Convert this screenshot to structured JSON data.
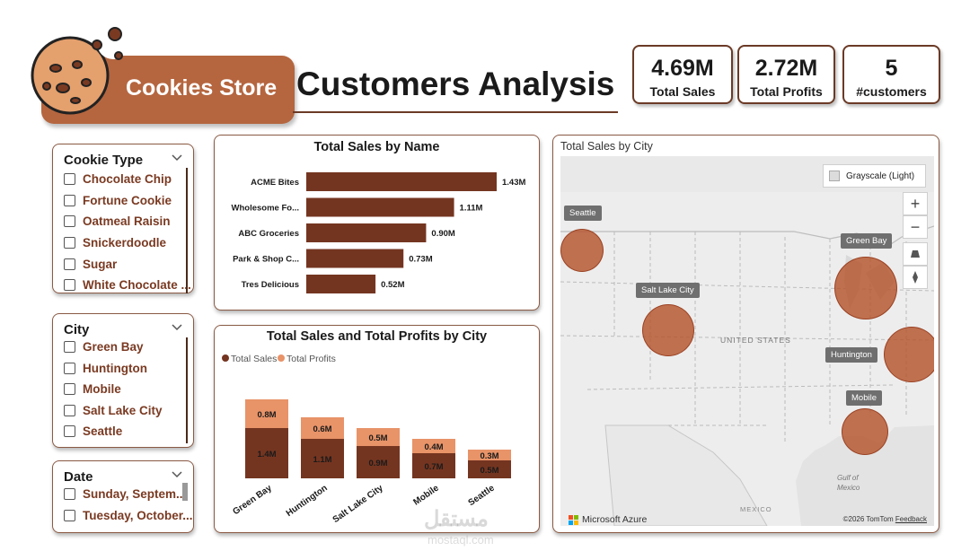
{
  "header": {
    "brand": "Cookies Store",
    "title": "Customers Analysis"
  },
  "kpis": [
    {
      "value": "4.69M",
      "label": "Total Sales"
    },
    {
      "value": "2.72M",
      "label": "Total Profits"
    },
    {
      "value": "5",
      "label": "#customers"
    }
  ],
  "slicers": {
    "cookie_type": {
      "title": "Cookie Type",
      "items": [
        "Chocolate Chip",
        "Fortune Cookie",
        "Oatmeal Raisin",
        "Snickerdoodle",
        "Sugar",
        "White Chocolate ..."
      ]
    },
    "city": {
      "title": "City",
      "items": [
        "Green Bay",
        "Huntington",
        "Mobile",
        "Salt Lake City",
        "Seattle"
      ]
    },
    "date": {
      "title": "Date",
      "items": [
        "Sunday, Septem...",
        "Tuesday, October..."
      ]
    }
  },
  "chart_data": [
    {
      "type": "bar",
      "orientation": "horizontal",
      "title": "Total Sales by Name",
      "categories": [
        "ACME Bites",
        "Wholesome Fo...",
        "ABC Groceries",
        "Park & Shop C...",
        "Tres Delicious"
      ],
      "values": [
        1.43,
        1.11,
        0.9,
        0.73,
        0.52
      ],
      "labels": [
        "1.43M",
        "1.11M",
        "0.90M",
        "0.73M",
        "0.52M"
      ],
      "unit": "M",
      "color": "#743520"
    },
    {
      "type": "bar",
      "stacked": true,
      "title": "Total Sales and Total Profits by City",
      "categories": [
        "Green Bay",
        "Huntington",
        "Salt Lake City",
        "Mobile",
        "Seattle"
      ],
      "series": [
        {
          "name": "Total Sales",
          "values": [
            1.4,
            1.1,
            0.9,
            0.7,
            0.5
          ],
          "labels": [
            "1.4M",
            "1.1M",
            "0.9M",
            "0.7M",
            "0.5M"
          ],
          "color": "#743520"
        },
        {
          "name": "Total Profits",
          "values": [
            0.8,
            0.6,
            0.5,
            0.4,
            0.3
          ],
          "labels": [
            "0.8M",
            "0.6M",
            "0.5M",
            "0.4M",
            "0.3M"
          ],
          "color": "#e89368"
        }
      ],
      "legend": "top-left"
    }
  ],
  "map": {
    "title": "Total Sales by City",
    "style_label": "Grayscale (Light)",
    "country_label": "UNITED STATES",
    "gulf_label": "Gulf of\nMexico",
    "mexico_label": "MEXICO",
    "provider": "Microsoft Azure",
    "attribution": "©2026 TomTom",
    "feedback": "Feedback",
    "zoom_in": "+",
    "zoom_out": "−",
    "cities": [
      "Seattle",
      "Salt Lake City",
      "Green Bay",
      "Huntington",
      "Mobile"
    ],
    "bubble_color": "#b5542c"
  },
  "watermark": {
    "text": "مستقل",
    "sub": "mostaql.com"
  }
}
